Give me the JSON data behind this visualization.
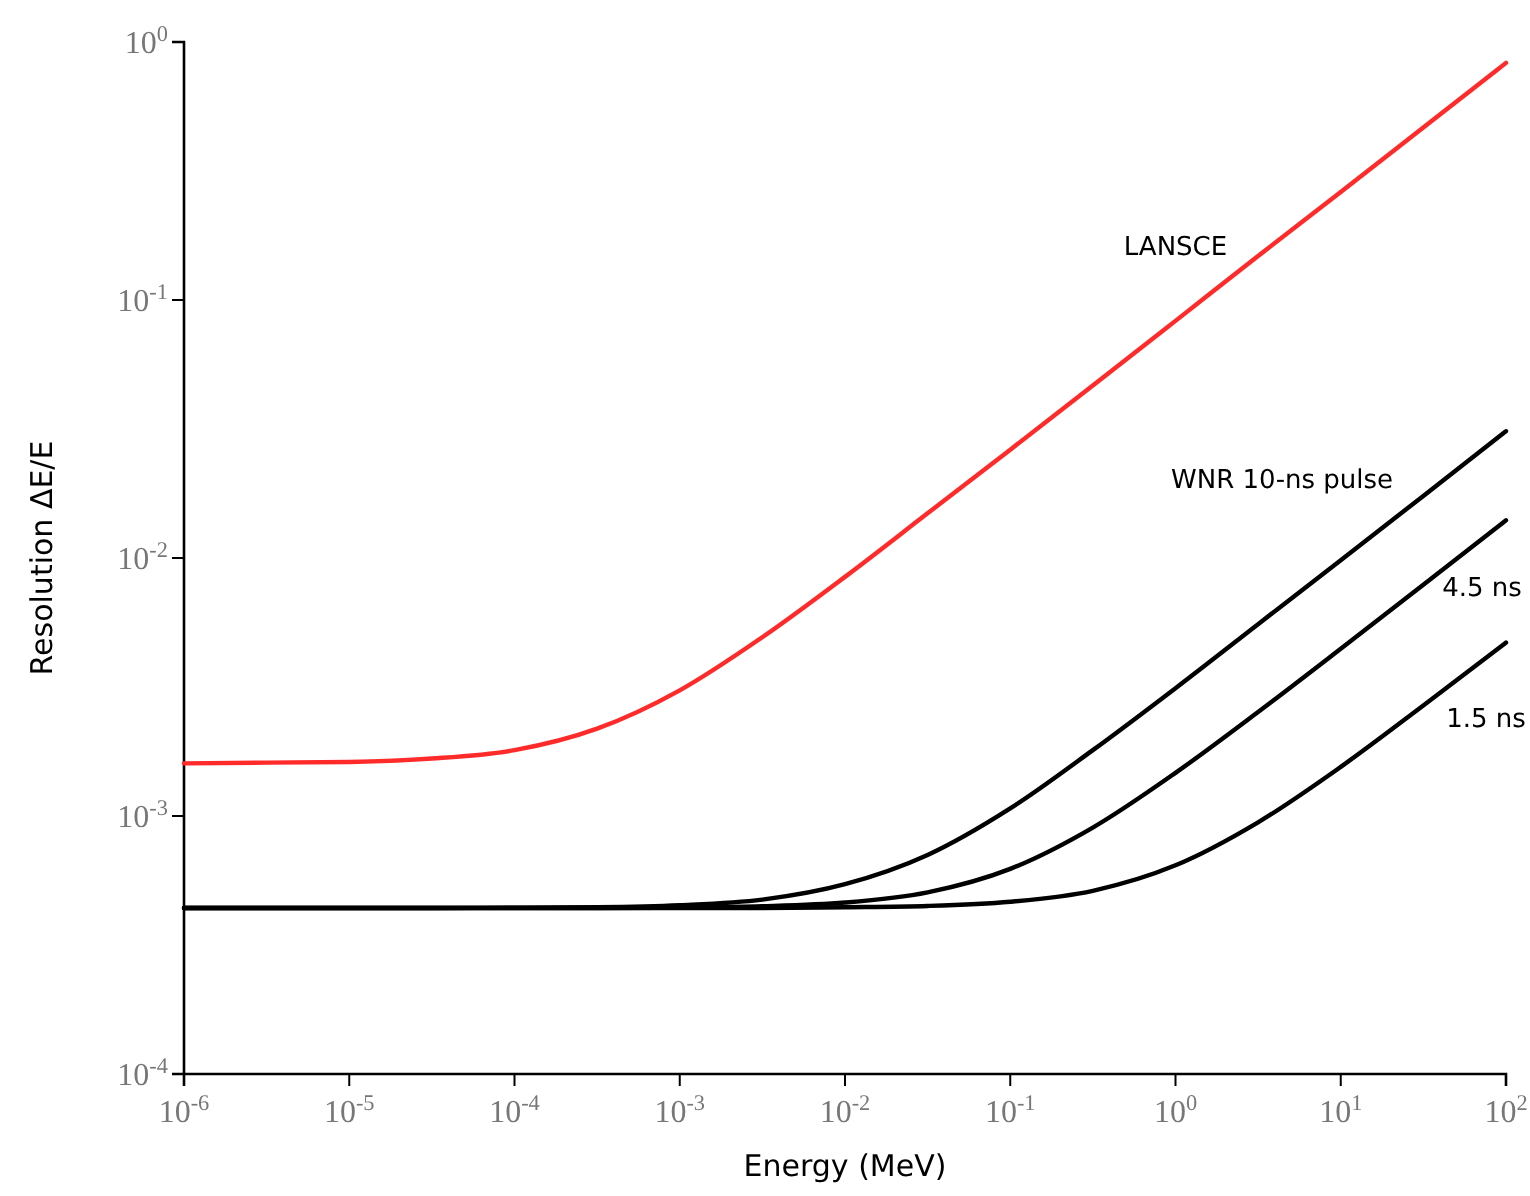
{
  "chart_data": {
    "type": "line",
    "xlabel": "Energy (MeV)",
    "ylabel": "Resolution ΔE/E",
    "log": "xy",
    "grid": false,
    "legend": false,
    "x": [
      1e-06,
      3.16e-06,
      1e-05,
      3.16e-05,
      0.0001,
      0.000316,
      0.001,
      0.00316,
      0.01,
      0.0316,
      0.1,
      0.316,
      1,
      3.16,
      10,
      31.6,
      100
    ],
    "xlim": [
      1e-06,
      100
    ],
    "ylim": [
      0.0001,
      1
    ],
    "xticks": [
      {
        "value": 1e-06,
        "label": "10$^{-6}$"
      },
      {
        "value": 1e-05,
        "label": "10$^{-5}$"
      },
      {
        "value": 0.0001,
        "label": "10$^{-4}$"
      },
      {
        "value": 0.001,
        "label": "10$^{-3}$"
      },
      {
        "value": 0.01,
        "label": "10$^{-2}$"
      },
      {
        "value": 0.1,
        "label": "10$^{-1}$"
      },
      {
        "value": 1,
        "label": "10$^{0}$"
      },
      {
        "value": 10,
        "label": "10$^{1}$"
      },
      {
        "value": 100,
        "label": "10$^{2}$"
      }
    ],
    "yticks": [
      {
        "value": 0.0001,
        "label": "10$^{-4}$"
      },
      {
        "value": 0.001,
        "label": "10$^{-3}$"
      },
      {
        "value": 0.01,
        "label": "10$^{-2}$"
      },
      {
        "value": 0.1,
        "label": "10$^{-1}$"
      },
      {
        "value": 1,
        "label": "10$^{0}$"
      }
    ],
    "series": [
      {
        "name": "LANSCE",
        "color": "#ff2a2a",
        "values": [
          0.0016,
          0.00161,
          0.00162,
          0.00167,
          0.0018,
          0.00218,
          0.00307,
          0.00493,
          0.00845,
          0.0149,
          0.0263,
          0.0466,
          0.083,
          0.148,
          0.262,
          0.466,
          0.83
        ]
      },
      {
        "name": "WNR 10-ns pulse",
        "color": "#000000",
        "values": [
          0.00044,
          0.00044,
          0.00044,
          0.00044,
          0.000441,
          0.000443,
          0.000451,
          0.000474,
          0.000544,
          0.000706,
          0.00107,
          0.0018,
          0.00313,
          0.00554,
          0.00981,
          0.0174,
          0.031
        ]
      },
      {
        "name": "4.5 ns",
        "color": "#000000",
        "values": [
          0.00044,
          0.00044,
          0.00044,
          0.00044,
          0.00044,
          0.00044,
          0.000442,
          0.000447,
          0.000462,
          0.000506,
          0.000624,
          0.000902,
          0.00147,
          0.00253,
          0.00445,
          0.00788,
          0.014
        ]
      },
      {
        "name": "1.5 ns",
        "color": "#000000",
        "values": [
          0.00044,
          0.00044,
          0.00044,
          0.00044,
          0.00044,
          0.00044,
          0.00044,
          0.00044,
          0.000443,
          0.000448,
          0.000465,
          0.000513,
          0.000644,
          0.000945,
          0.00155,
          0.00268,
          0.0047
        ]
      }
    ]
  }
}
